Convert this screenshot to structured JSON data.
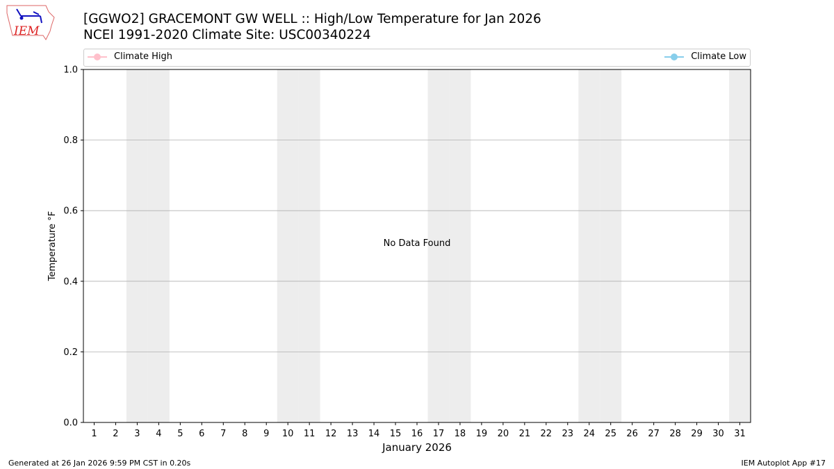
{
  "header": {
    "logo_text": "IEM",
    "title_line1": "[GGWO2] GRACEMONT GW WELL :: High/Low Temperature for Jan 2026",
    "title_line2": "NCEI 1991-2020 Climate Site: USC00340224"
  },
  "chart_data": {
    "type": "line",
    "title": "[GGWO2] GRACEMONT GW WELL :: High/Low Temperature for Jan 2026",
    "subtitle": "NCEI 1991-2020 Climate Site: USC00340224",
    "xlabel": "January 2026",
    "ylabel": "Temperature °F",
    "xlim": [
      0.5,
      31.5
    ],
    "ylim": [
      0,
      1
    ],
    "x_ticks": [
      1,
      2,
      3,
      4,
      5,
      6,
      7,
      8,
      9,
      10,
      11,
      12,
      13,
      14,
      15,
      16,
      17,
      18,
      19,
      20,
      21,
      22,
      23,
      24,
      25,
      26,
      27,
      28,
      29,
      30,
      31
    ],
    "y_ticks": [
      "0.0",
      "0.2",
      "0.4",
      "0.6",
      "0.8",
      "1.0"
    ],
    "grid": "horizontal",
    "weekend_shading_days": [
      3,
      4,
      10,
      11,
      17,
      18,
      24,
      25,
      31
    ],
    "shading_color": "#ededed",
    "annotation": "No Data Found",
    "legend_placement": "top",
    "series": [
      {
        "name": "Climate High",
        "color": "#ffc0cb",
        "values": []
      },
      {
        "name": "Climate Low",
        "color": "#87ceeb",
        "values": []
      }
    ]
  },
  "footer": {
    "generated": "Generated at 26 Jan 2026 9:59 PM CST in 0.20s",
    "app": "IEM Autoplot App #17"
  }
}
